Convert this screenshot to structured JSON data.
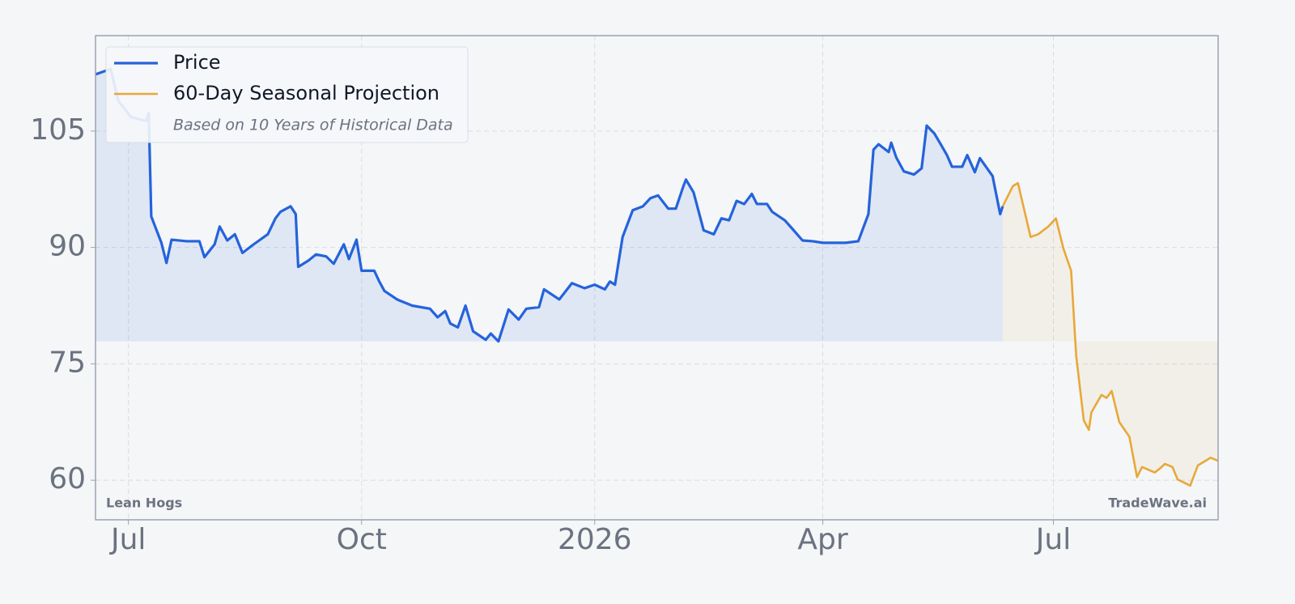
{
  "chart_data": {
    "type": "line",
    "xlim": [
      "2025-06-18",
      "2026-09-04"
    ],
    "ylim": [
      54.9,
      117.3
    ],
    "xticks": [
      {
        "value": "2025-07-01",
        "label": "Jul"
      },
      {
        "value": "2025-10-01",
        "label": "Oct"
      },
      {
        "value": "2026-01-01",
        "label": "2026"
      },
      {
        "value": "2026-04-01",
        "label": "Apr"
      },
      {
        "value": "2026-07-01",
        "label": "Jul"
      }
    ],
    "yticks": [
      60,
      75,
      90,
      105
    ],
    "grid": true,
    "legend": "upper left",
    "legend_note": "Based on 10 Years of Historical Data",
    "label_left": "Lean Hogs",
    "label_right": "TradeWave.ai",
    "series": [
      {
        "name": "Price",
        "color": "#2563db",
        "x": [
          "2025-06-18",
          "2025-06-24",
          "2025-06-27",
          "2025-07-02",
          "2025-07-08",
          "2025-07-09",
          "2025-07-10",
          "2025-07-14",
          "2025-07-16",
          "2025-07-18",
          "2025-07-24",
          "2025-07-29",
          "2025-07-31",
          "2025-08-04",
          "2025-08-06",
          "2025-08-09",
          "2025-08-12",
          "2025-08-15",
          "2025-08-19",
          "2025-08-25",
          "2025-08-28",
          "2025-08-30",
          "2025-09-03",
          "2025-09-05",
          "2025-09-06",
          "2025-09-10",
          "2025-09-13",
          "2025-09-17",
          "2025-09-20",
          "2025-09-24",
          "2025-09-26",
          "2025-09-29",
          "2025-10-01",
          "2025-10-06",
          "2025-10-08",
          "2025-10-10",
          "2025-10-15",
          "2025-10-21",
          "2025-10-28",
          "2025-10-31",
          "2025-11-03",
          "2025-11-05",
          "2025-11-08",
          "2025-11-11",
          "2025-11-14",
          "2025-11-19",
          "2025-11-21",
          "2025-11-24",
          "2025-11-28",
          "2025-12-02",
          "2025-12-05",
          "2025-12-10",
          "2025-12-12",
          "2025-12-18",
          "2025-12-23",
          "2025-12-28",
          "2026-01-01",
          "2026-01-05",
          "2026-01-07",
          "2026-01-09",
          "2026-01-12",
          "2026-01-16",
          "2026-01-20",
          "2026-01-23",
          "2026-01-26",
          "2026-01-30",
          "2026-02-02",
          "2026-02-05",
          "2026-02-06",
          "2026-02-09",
          "2026-02-13",
          "2026-02-17",
          "2026-02-20",
          "2026-02-23",
          "2026-02-26",
          "2026-03-01",
          "2026-03-04",
          "2026-03-06",
          "2026-03-10",
          "2026-03-12",
          "2026-03-17",
          "2026-03-20",
          "2026-03-24",
          "2026-03-28",
          "2026-04-01",
          "2026-04-05",
          "2026-04-10",
          "2026-04-15",
          "2026-04-19",
          "2026-04-21",
          "2026-04-23",
          "2026-04-27",
          "2026-04-28",
          "2026-04-30",
          "2026-05-03",
          "2026-05-07",
          "2026-05-10",
          "2026-05-12",
          "2026-05-15",
          "2026-05-17",
          "2026-05-20",
          "2026-05-22",
          "2026-05-26",
          "2026-05-28",
          "2026-05-31",
          "2026-06-02",
          "2026-06-07",
          "2026-06-10",
          "2026-06-11"
        ],
        "values": [
          112.3,
          113.0,
          108.9,
          106.8,
          106.3,
          107.3,
          94.0,
          90.6,
          88.0,
          91.0,
          90.8,
          90.8,
          88.75,
          90.4,
          92.7,
          90.9,
          91.7,
          89.3,
          90.3,
          91.7,
          93.75,
          94.6,
          95.3,
          94.3,
          87.5,
          88.3,
          89.1,
          88.85,
          87.9,
          90.4,
          88.5,
          91.0,
          87.0,
          87.0,
          85.6,
          84.4,
          83.3,
          82.5,
          82.1,
          81.0,
          81.8,
          80.2,
          79.7,
          82.5,
          79.2,
          78.1,
          78.9,
          77.9,
          82.0,
          80.7,
          82.1,
          82.3,
          84.6,
          83.3,
          85.4,
          84.75,
          85.2,
          84.6,
          85.6,
          85.2,
          91.35,
          94.8,
          95.3,
          96.35,
          96.7,
          95.0,
          95.0,
          97.9,
          98.75,
          97.1,
          92.2,
          91.7,
          93.75,
          93.5,
          96.0,
          95.6,
          96.9,
          95.6,
          95.6,
          94.6,
          93.5,
          92.4,
          90.9,
          90.8,
          90.6,
          90.6,
          90.6,
          90.8,
          94.3,
          102.6,
          103.3,
          102.3,
          103.5,
          101.6,
          99.8,
          99.4,
          100.2,
          105.7,
          104.7,
          103.6,
          101.9,
          100.4,
          100.4,
          101.9,
          99.7,
          101.5,
          99.2,
          94.3,
          95.3
        ]
      },
      {
        "name": "60-Day Seasonal Projection",
        "color": "#e8a838",
        "x": [
          "2026-06-11",
          "2026-06-15",
          "2026-06-17",
          "2026-06-22",
          "2026-06-25",
          "2026-06-29",
          "2026-07-02",
          "2026-07-05",
          "2026-07-08",
          "2026-07-10",
          "2026-07-13",
          "2026-07-15",
          "2026-07-16",
          "2026-07-20",
          "2026-07-22",
          "2026-07-24",
          "2026-07-27",
          "2026-07-31",
          "2026-08-03",
          "2026-08-05",
          "2026-08-10",
          "2026-08-12",
          "2026-08-14",
          "2026-08-17",
          "2026-08-19",
          "2026-08-24",
          "2026-08-27",
          "2026-09-01",
          "2026-09-04"
        ],
        "values": [
          95.3,
          97.9,
          98.3,
          91.35,
          91.7,
          92.7,
          93.75,
          89.8,
          87.0,
          76.0,
          67.7,
          66.5,
          68.75,
          71.0,
          70.6,
          71.5,
          67.5,
          65.6,
          60.4,
          61.7,
          61.0,
          61.5,
          62.1,
          61.7,
          60.1,
          59.3,
          61.9,
          62.9,
          62.5
        ]
      }
    ]
  }
}
